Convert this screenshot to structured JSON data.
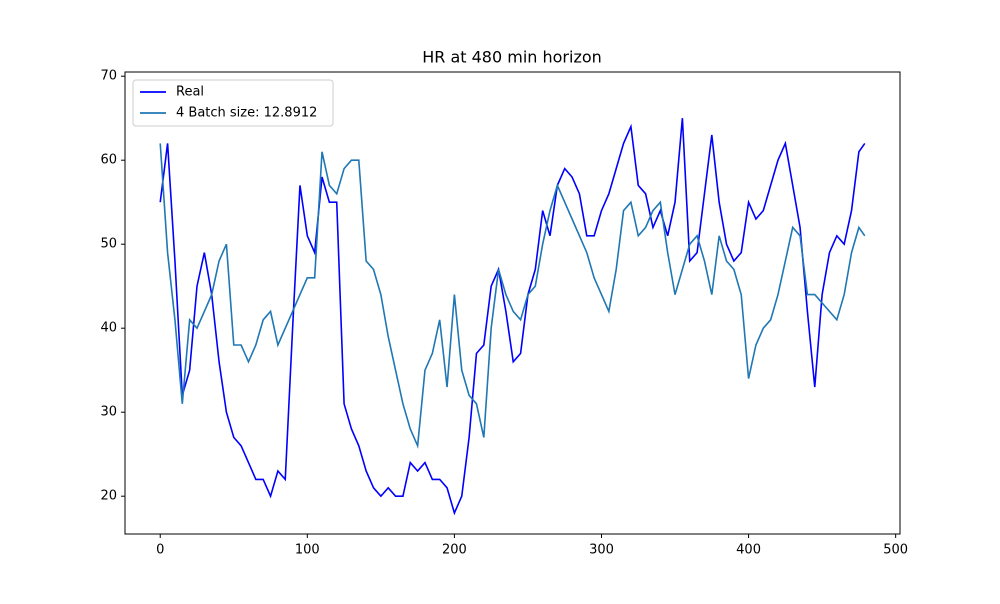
{
  "chart_data": {
    "type": "line",
    "title": "HR at 480 min horizon",
    "x": [
      0,
      5,
      10,
      15,
      20,
      25,
      30,
      35,
      40,
      45,
      50,
      55,
      60,
      65,
      70,
      75,
      80,
      85,
      90,
      95,
      100,
      105,
      110,
      115,
      120,
      125,
      130,
      135,
      140,
      145,
      150,
      155,
      160,
      165,
      170,
      175,
      180,
      185,
      190,
      195,
      200,
      205,
      210,
      215,
      220,
      225,
      230,
      235,
      240,
      245,
      250,
      255,
      260,
      265,
      270,
      275,
      280,
      285,
      290,
      295,
      300,
      305,
      310,
      315,
      320,
      325,
      330,
      335,
      340,
      345,
      350,
      355,
      360,
      365,
      370,
      375,
      380,
      385,
      390,
      395,
      400,
      405,
      410,
      415,
      420,
      425,
      430,
      435,
      440,
      445,
      450,
      455,
      460,
      465,
      470,
      475,
      479
    ],
    "series": [
      {
        "name": "Real",
        "color": "#0000ff",
        "values": [
          55,
          62,
          48,
          32,
          35,
          45,
          49,
          44,
          36,
          30,
          27,
          26,
          24,
          22,
          22,
          20,
          23,
          22,
          40,
          57,
          51,
          49,
          58,
          55,
          55,
          31,
          28,
          26,
          23,
          21,
          20,
          21,
          20,
          20,
          24,
          23,
          24,
          22,
          22,
          21,
          18,
          20,
          27,
          37,
          38,
          45,
          47,
          42,
          36,
          37,
          44,
          47,
          54,
          51,
          57,
          59,
          58,
          56,
          51,
          51,
          54,
          56,
          59,
          62,
          64,
          57,
          56,
          52,
          54,
          51,
          55,
          65,
          48,
          49,
          56,
          63,
          55,
          50,
          48,
          49,
          55,
          53,
          54,
          57,
          60,
          62,
          57,
          52,
          42,
          33,
          44,
          49,
          51,
          50,
          54,
          61,
          62
        ]
      },
      {
        "name": "4 Batch size: 12.8912",
        "color": "#1f77b4",
        "values": [
          62,
          49,
          41,
          31,
          41,
          40,
          42,
          44,
          48,
          50,
          38,
          38,
          36,
          38,
          41,
          42,
          38,
          40,
          42,
          44,
          46,
          46,
          61,
          57,
          56,
          59,
          60,
          60,
          48,
          47,
          44,
          39,
          35,
          31,
          28,
          26,
          35,
          37,
          41,
          33,
          44,
          35,
          32,
          31,
          27,
          40,
          47,
          44,
          42,
          41,
          44,
          45,
          50,
          54,
          57,
          55,
          53,
          51,
          49,
          46,
          44,
          42,
          47,
          54,
          55,
          51,
          52,
          54,
          55,
          49,
          44,
          47,
          50,
          51,
          48,
          44,
          51,
          48,
          47,
          44,
          34,
          38,
          40,
          41,
          44,
          48,
          52,
          51,
          44,
          44,
          43,
          42,
          41,
          44,
          49,
          52,
          51
        ]
      }
    ],
    "xlim": [
      -23.95,
      502.95
    ],
    "xticks": [
      0,
      100,
      200,
      300,
      400,
      500
    ],
    "ylim": [
      15.5,
      70.5
    ],
    "yticks": [
      20,
      30,
      40,
      50,
      60,
      70
    ],
    "legend": "upper left"
  }
}
